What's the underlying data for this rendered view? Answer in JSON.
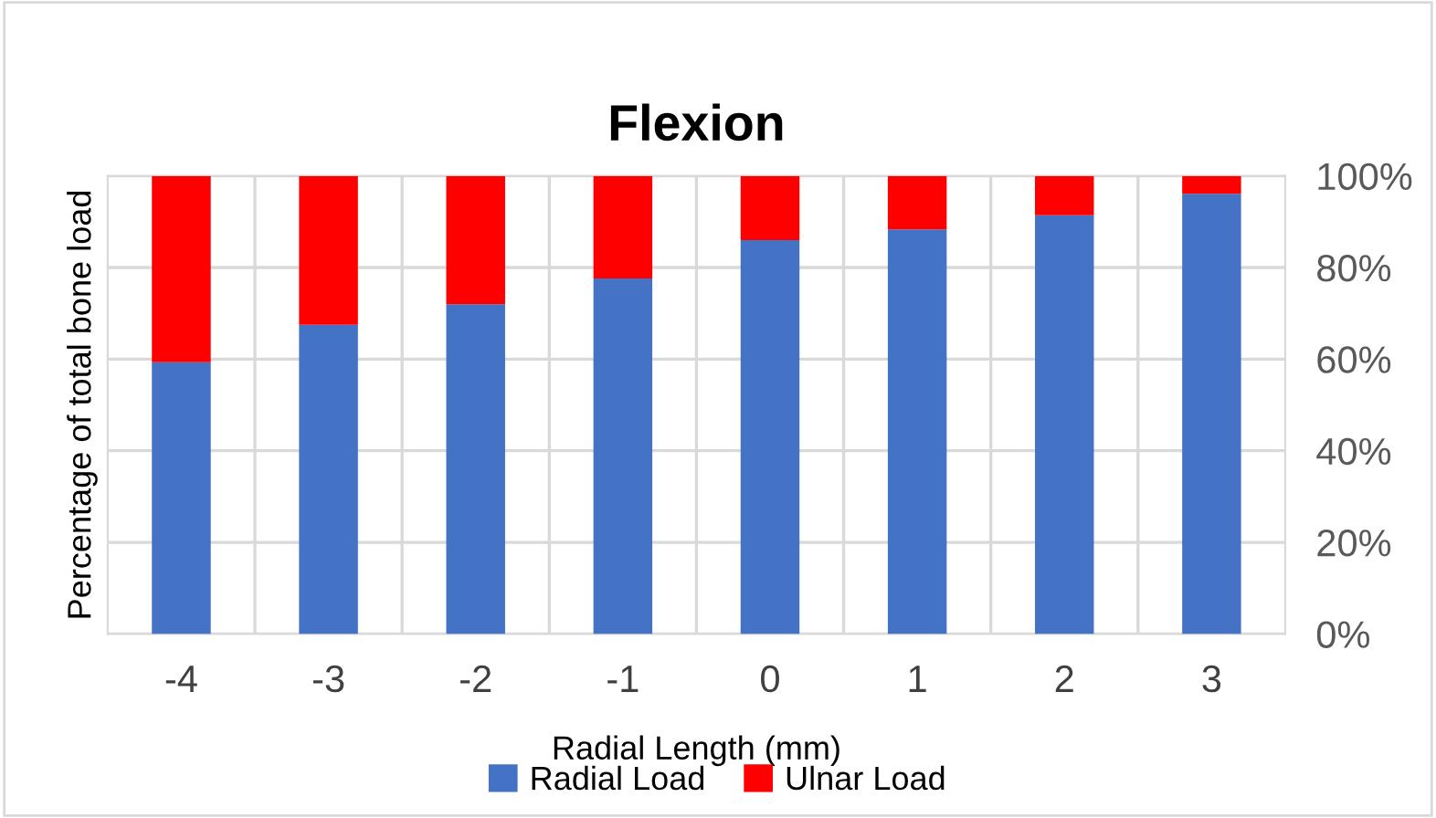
{
  "chart_data": {
    "type": "bar",
    "title": "Flexion",
    "xlabel": "Radial Length (mm)",
    "ylabel": "Percentage of total bone load",
    "categories": [
      "-4",
      "-3",
      "-2",
      "-1",
      "0",
      "1",
      "2",
      "3"
    ],
    "series": [
      {
        "name": "Radial Load",
        "color": "#4472c4",
        "values": [
          59.3,
          67.5,
          72.0,
          77.6,
          86.0,
          88.3,
          91.4,
          96.1
        ]
      },
      {
        "name": "Ulnar Load",
        "color": "#ff0000",
        "values": [
          40.7,
          32.5,
          28.0,
          22.4,
          14.0,
          11.7,
          8.6,
          3.9
        ]
      }
    ],
    "stacked": true,
    "ylim": [
      0,
      100
    ],
    "yticks": [
      {
        "value": 0,
        "label": "0%"
      },
      {
        "value": 20,
        "label": "20%"
      },
      {
        "value": 40,
        "label": "40%"
      },
      {
        "value": 60,
        "label": "60%"
      },
      {
        "value": 80,
        "label": "80%"
      },
      {
        "value": 100,
        "label": "100%"
      }
    ],
    "grid": true,
    "legend": "bottom"
  }
}
